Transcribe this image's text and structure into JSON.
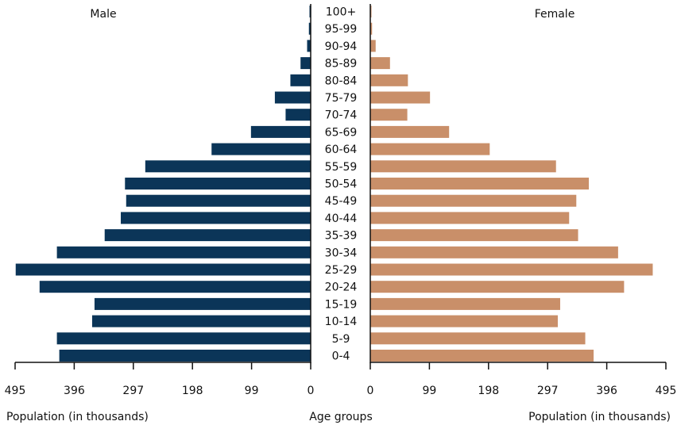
{
  "chart_data": {
    "type": "bar",
    "subtype": "population-pyramid",
    "categories": [
      "100+",
      "95-99",
      "90-94",
      "85-89",
      "80-84",
      "75-79",
      "70-74",
      "65-69",
      "60-64",
      "55-59",
      "50-54",
      "45-49",
      "40-44",
      "35-39",
      "30-34",
      "25-29",
      "20-24",
      "15-19",
      "10-14",
      "5-9",
      "0-4"
    ],
    "series": [
      {
        "name": "Male",
        "side": "left",
        "values": [
          2,
          3,
          6,
          17,
          34,
          60,
          42,
          100,
          166,
          277,
          311,
          309,
          318,
          345,
          425,
          494,
          454,
          362,
          366,
          425,
          421
        ]
      },
      {
        "name": "Female",
        "side": "right",
        "values": [
          2,
          3,
          9,
          33,
          63,
          100,
          62,
          132,
          200,
          311,
          366,
          345,
          333,
          348,
          415,
          473,
          425,
          318,
          314,
          360,
          374
        ]
      }
    ],
    "axis_min": 0,
    "axis_max": 495,
    "tick_values": [
      0,
      99,
      198,
      297,
      396,
      495
    ],
    "tick_labels": [
      "0",
      "99",
      "198",
      "297",
      "396",
      "495"
    ],
    "xlabel_left": "Population (in thousands)",
    "xlabel_center": "Age groups",
    "xlabel_right": "Population (in thousands)",
    "legend_male": "Male",
    "legend_female": "Female",
    "colors": {
      "male": "#0b3558",
      "female": "#c98f69",
      "axis": "#111111"
    }
  }
}
